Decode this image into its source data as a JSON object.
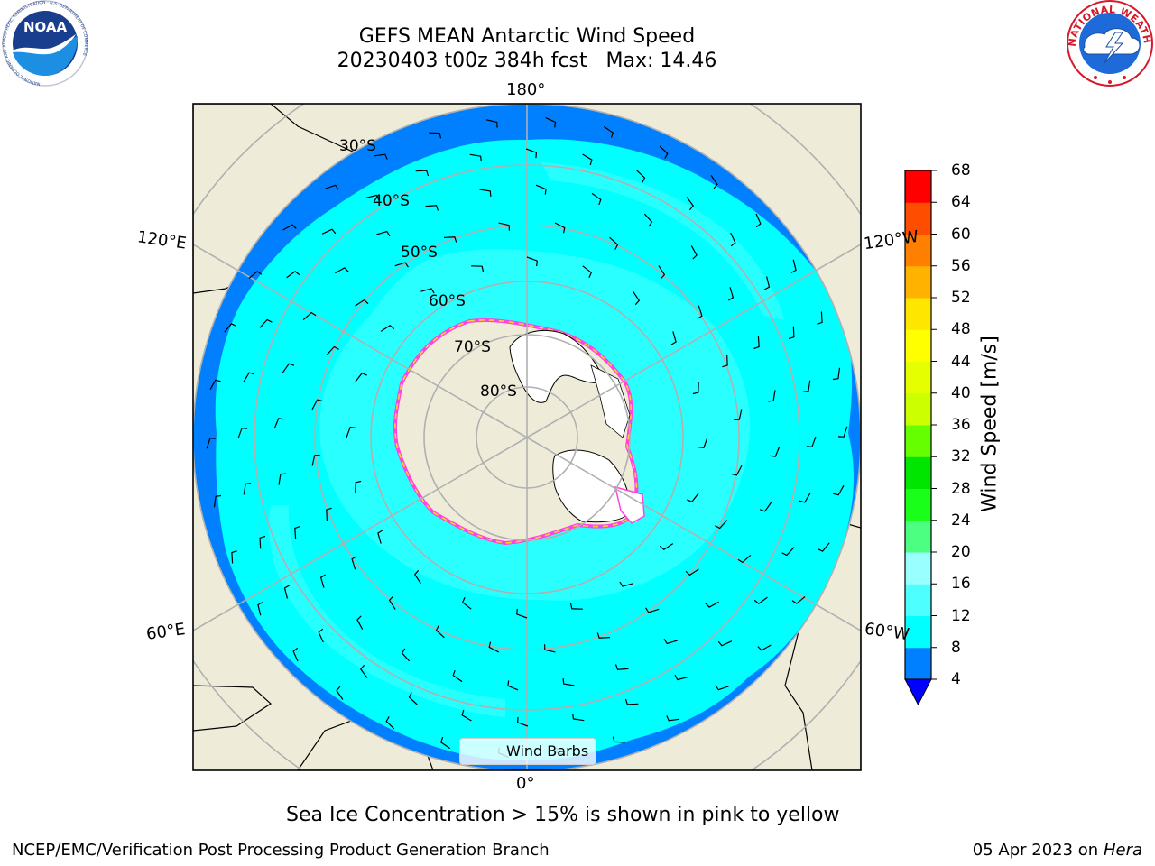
{
  "title": {
    "line1": "GEFS MEAN Antarctic Wind Speed",
    "line2": "20230403 t00z 384h fcst   Max: 14.46"
  },
  "logos": {
    "left": {
      "icon": "noaa-logo",
      "text": "NOAA",
      "ring_text": "NATIONAL OCEANIC AND ATMOSPHERIC ADMINISTRATION · U.S. DEPARTMENT OF COMMERCE"
    },
    "right": {
      "icon": "nws-logo",
      "ring_text": "NATIONAL WEATHER SERVICE"
    }
  },
  "map": {
    "projection": "south-polar-stereographic",
    "longitude_labels": {
      "top": "180°",
      "bottom": "0°",
      "left_upper": "120°E",
      "left_lower": "60°E",
      "right_upper": "120°W",
      "right_lower": "60°W"
    },
    "latitude_labels": [
      "30°S",
      "40°S",
      "50°S",
      "60°S",
      "70°S",
      "80°S"
    ],
    "legend": {
      "label": "Wind Barbs"
    },
    "colors": {
      "land": "#eeecd9",
      "ice_free_antarctic_sea": "#ffffff",
      "grid": "#b0b0b0",
      "sea_ice_edge": [
        "#ff44dd",
        "#ffcc33"
      ]
    }
  },
  "colorbar": {
    "label": "Wind Speed [m/s]",
    "ticks": [
      "4",
      "8",
      "12",
      "16",
      "20",
      "24",
      "28",
      "32",
      "36",
      "40",
      "44",
      "48",
      "52",
      "56",
      "60",
      "64",
      "68"
    ],
    "min": 4,
    "max": 68,
    "extend": "min",
    "under_color": "#0000ff",
    "colors": [
      "#0080ff",
      "#00ffff",
      "#4dffff",
      "#99ffff",
      "#4dff80",
      "#1aff1a",
      "#00e600",
      "#66ff00",
      "#ccff00",
      "#e6ff00",
      "#ffff00",
      "#ffe600",
      "#ffb300",
      "#ff8000",
      "#ff4d00",
      "#ff0000"
    ]
  },
  "note": "Sea Ice Concentration > 15% is shown in pink to yellow",
  "footer": {
    "left": "NCEP/EMC/Verification Post Processing Product Generation Branch",
    "right_date": "05 Apr 2023 on ",
    "right_host": "Hera"
  }
}
